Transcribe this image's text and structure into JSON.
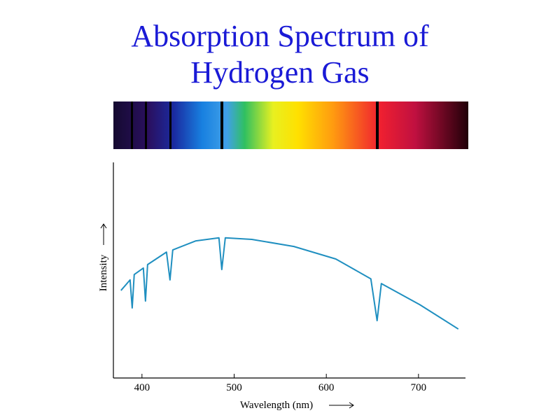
{
  "chart_data": {
    "type": "line",
    "title": "Absorption Spectrum of Hydrogen Gas",
    "x_label": "Wavelength (nm)",
    "y_label": "Intensity",
    "series": [
      {
        "name": "Intensity",
        "color": "#1f8fc0",
        "x": [
          377.2,
          387.1,
          389.4,
          391.6,
          401.5,
          403.8,
          406.1,
          426.6,
          430.4,
          433.4,
          458.5,
          483.5,
          486.6,
          490.4,
          519.2,
          564.8,
          610.3,
          648.3,
          655.1,
          659.7,
          701.4,
          743.2
        ],
        "values": [
          40.6,
          45.5,
          32.5,
          48,
          51,
          35.7,
          52.6,
          58.4,
          45.5,
          59.4,
          63.6,
          65,
          50.3,
          65,
          64.3,
          61,
          55.2,
          46,
          26.6,
          43.8,
          34,
          22.7
        ]
      }
    ],
    "xlim": [
      369,
      751
    ],
    "xticks": [
      400,
      500,
      600,
      700
    ],
    "ylim": [
      0,
      100
    ]
  }
}
